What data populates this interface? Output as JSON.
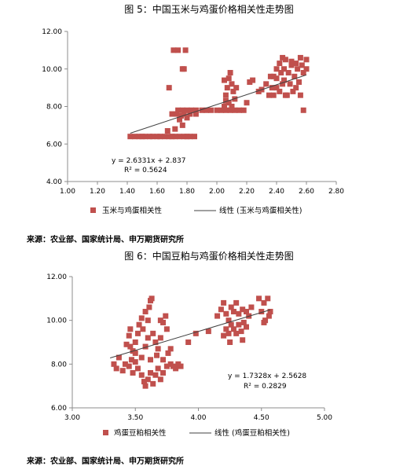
{
  "charts": [
    {
      "fig_title": "图 5：中国玉米与鸡蛋价格相关性走势图",
      "source": "来源：农业部、国家统计局、申万期货研究所",
      "equation": "y = 2.6331x + 2.837",
      "r2": "R² = 0.5624",
      "legend_scatter": "玉米与鸡蛋相关性",
      "legend_trend": "线性 (玉米与鸡蛋相关性)",
      "marker_color": "#c0504d"
    },
    {
      "fig_title": "图 6：中国豆粕与鸡蛋价格相关性走势图",
      "source": "来源：农业部、国家统计局、申万期货研究所",
      "equation": "y = 1.7328x + 2.5628",
      "r2": "R² = 0.2829",
      "legend_scatter": "鸡蛋豆粕相关性",
      "legend_trend": "线性 (鸡蛋豆粕相关性)",
      "marker_color": "#c0504d"
    }
  ],
  "chart_data": [
    {
      "type": "scatter",
      "xlim": [
        1.0,
        2.8
      ],
      "ylim": [
        4.0,
        12.0
      ],
      "xticks": [
        "1.00",
        "1.20",
        "1.40",
        "1.60",
        "1.80",
        "2.00",
        "2.20",
        "2.40",
        "2.60",
        "2.80"
      ],
      "yticks": [
        "4.00",
        "6.00",
        "8.00",
        "10.00",
        "12.00"
      ],
      "grid": false,
      "legend_position": "bottom",
      "series": [
        {
          "points": [
            [
              1.42,
              6.4
            ],
            [
              1.45,
              6.4
            ],
            [
              1.48,
              6.4
            ],
            [
              1.5,
              6.4
            ],
            [
              1.52,
              6.4
            ],
            [
              1.55,
              6.4
            ],
            [
              1.57,
              6.4
            ],
            [
              1.6,
              6.4
            ],
            [
              1.62,
              6.4
            ],
            [
              1.65,
              6.4
            ],
            [
              1.68,
              6.4
            ],
            [
              1.7,
              6.4
            ],
            [
              1.72,
              6.4
            ],
            [
              1.75,
              6.4
            ],
            [
              1.78,
              6.4
            ],
            [
              1.8,
              6.4
            ],
            [
              1.82,
              6.4
            ],
            [
              1.85,
              6.4
            ],
            [
              1.67,
              6.7
            ],
            [
              1.72,
              6.8
            ],
            [
              1.7,
              7.6
            ],
            [
              1.73,
              7.6
            ],
            [
              1.76,
              7.5
            ],
            [
              1.78,
              7.6
            ],
            [
              1.75,
              7.3
            ],
            [
              1.77,
              7.0
            ],
            [
              1.8,
              7.4
            ],
            [
              1.82,
              7.6
            ],
            [
              1.74,
              7.8
            ],
            [
              1.77,
              7.8
            ],
            [
              1.8,
              7.8
            ],
            [
              1.83,
              7.8
            ],
            [
              1.86,
              7.8
            ],
            [
              1.9,
              7.8
            ],
            [
              1.93,
              7.8
            ],
            [
              1.96,
              7.8
            ],
            [
              2.0,
              7.8
            ],
            [
              2.03,
              7.8
            ],
            [
              2.06,
              7.8
            ],
            [
              2.09,
              7.8
            ],
            [
              2.12,
              7.8
            ],
            [
              2.15,
              7.8
            ],
            [
              2.18,
              7.8
            ],
            [
              1.86,
              7.6
            ],
            [
              1.68,
              9.0
            ],
            [
              1.71,
              11.0
            ],
            [
              1.74,
              11.0
            ],
            [
              1.79,
              11.0
            ],
            [
              1.77,
              10.0
            ],
            [
              1.78,
              10.0
            ],
            [
              2.05,
              8.0
            ],
            [
              2.06,
              8.6
            ],
            [
              2.07,
              9.0
            ],
            [
              2.08,
              9.5
            ],
            [
              2.09,
              9.8
            ],
            [
              2.06,
              8.3
            ],
            [
              2.1,
              9.2
            ],
            [
              2.11,
              8.8
            ],
            [
              2.08,
              8.2
            ],
            [
              2.12,
              8.4
            ],
            [
              2.05,
              9.4
            ],
            [
              2.1,
              8.0
            ],
            [
              2.13,
              9.0
            ],
            [
              2.22,
              9.3
            ],
            [
              2.24,
              9.4
            ],
            [
              2.2,
              8.2
            ],
            [
              2.28,
              8.8
            ],
            [
              2.3,
              8.9
            ],
            [
              2.33,
              9.2
            ],
            [
              2.35,
              8.6
            ],
            [
              2.37,
              9.0
            ],
            [
              2.38,
              8.6
            ],
            [
              2.4,
              9.5
            ],
            [
              2.42,
              8.8
            ],
            [
              2.44,
              9.2
            ],
            [
              2.46,
              8.6
            ],
            [
              2.38,
              9.6
            ],
            [
              2.4,
              10.0
            ],
            [
              2.42,
              10.3
            ],
            [
              2.44,
              10.6
            ],
            [
              2.46,
              10.5
            ],
            [
              2.45,
              10.0
            ],
            [
              2.48,
              9.8
            ],
            [
              2.5,
              10.2
            ],
            [
              2.52,
              9.6
            ],
            [
              2.54,
              10.0
            ],
            [
              2.55,
              9.3
            ],
            [
              2.57,
              10.2
            ],
            [
              2.58,
              9.8
            ],
            [
              2.6,
              10.5
            ],
            [
              2.6,
              10.0
            ],
            [
              2.56,
              10.6
            ],
            [
              2.47,
              8.6
            ],
            [
              2.49,
              9.2
            ],
            [
              2.51,
              8.8
            ],
            [
              2.53,
              9.0
            ],
            [
              2.56,
              8.6
            ],
            [
              2.4,
              9.0
            ],
            [
              2.43,
              9.8
            ],
            [
              2.58,
              7.8
            ],
            [
              2.36,
              9.6
            ],
            [
              2.5,
              10.4
            ],
            [
              2.53,
              10.3
            ],
            [
              2.45,
              9.4
            ]
          ]
        }
      ],
      "trendline": {
        "slope": 2.6331,
        "intercept": 2.837,
        "x_range": [
          1.42,
          2.6
        ]
      }
    },
    {
      "type": "scatter",
      "xlim": [
        3.0,
        5.0
      ],
      "ylim": [
        6.0,
        12.0
      ],
      "xticks": [
        "3.00",
        "3.50",
        "4.00",
        "4.50",
        "5.00"
      ],
      "yticks": [
        "6.00",
        "8.00",
        "10.00",
        "12.00"
      ],
      "grid": false,
      "legend_position": "bottom",
      "series": [
        {
          "points": [
            [
              3.33,
              8.0
            ],
            [
              3.35,
              7.8
            ],
            [
              3.37,
              8.3
            ],
            [
              3.4,
              7.7
            ],
            [
              3.42,
              8.0
            ],
            [
              3.45,
              7.9
            ],
            [
              3.47,
              8.2
            ],
            [
              3.48,
              7.6
            ],
            [
              3.5,
              8.1
            ],
            [
              3.52,
              7.8
            ],
            [
              3.55,
              7.5
            ],
            [
              3.57,
              7.2
            ],
            [
              3.58,
              7.0
            ],
            [
              3.6,
              7.3
            ],
            [
              3.62,
              7.6
            ],
            [
              3.64,
              7.1
            ],
            [
              3.66,
              7.5
            ],
            [
              3.68,
              7.8
            ],
            [
              3.7,
              7.3
            ],
            [
              3.72,
              7.6
            ],
            [
              3.75,
              7.9
            ],
            [
              3.78,
              8.0
            ],
            [
              3.82,
              7.8
            ],
            [
              3.86,
              7.9
            ],
            [
              3.43,
              8.9
            ],
            [
              3.45,
              9.3
            ],
            [
              3.46,
              9.6
            ],
            [
              3.48,
              8.6
            ],
            [
              3.5,
              9.0
            ],
            [
              3.52,
              9.4
            ],
            [
              3.53,
              9.8
            ],
            [
              3.55,
              10.1
            ],
            [
              3.56,
              9.6
            ],
            [
              3.58,
              10.4
            ],
            [
              3.6,
              10.0
            ],
            [
              3.61,
              10.6
            ],
            [
              3.62,
              10.9
            ],
            [
              3.63,
              11.0
            ],
            [
              3.6,
              9.2
            ],
            [
              3.58,
              8.8
            ],
            [
              3.64,
              9.4
            ],
            [
              3.66,
              9.0
            ],
            [
              3.68,
              8.7
            ],
            [
              3.7,
              9.2
            ],
            [
              3.72,
              9.9
            ],
            [
              3.74,
              10.2
            ],
            [
              3.7,
              10.0
            ],
            [
              3.75,
              9.6
            ],
            [
              3.67,
              8.4
            ],
            [
              3.62,
              8.2
            ],
            [
              3.55,
              8.3
            ],
            [
              3.5,
              8.5
            ],
            [
              3.46,
              8.8
            ],
            [
              3.72,
              8.2
            ],
            [
              3.76,
              8.5
            ],
            [
              3.78,
              8.7
            ],
            [
              3.8,
              7.9
            ],
            [
              3.84,
              8.0
            ],
            [
              3.92,
              9.0
            ],
            [
              3.98,
              9.4
            ],
            [
              4.08,
              9.5
            ],
            [
              4.15,
              10.2
            ],
            [
              4.18,
              10.5
            ],
            [
              4.2,
              10.8
            ],
            [
              4.22,
              10.3
            ],
            [
              4.24,
              10.0
            ],
            [
              4.26,
              10.6
            ],
            [
              4.28,
              10.4
            ],
            [
              4.3,
              10.8
            ],
            [
              4.32,
              10.3
            ],
            [
              4.35,
              10.5
            ],
            [
              4.38,
              10.4
            ],
            [
              4.4,
              10.2
            ],
            [
              4.42,
              10.6
            ],
            [
              4.2,
              9.3
            ],
            [
              4.22,
              9.6
            ],
            [
              4.24,
              9.4
            ],
            [
              4.26,
              9.8
            ],
            [
              4.28,
              9.6
            ],
            [
              4.3,
              9.4
            ],
            [
              4.32,
              9.8
            ],
            [
              4.34,
              9.5
            ],
            [
              4.36,
              9.9
            ],
            [
              4.38,
              9.7
            ],
            [
              4.25,
              9.0
            ],
            [
              4.35,
              9.1
            ],
            [
              4.48,
              11.0
            ],
            [
              4.52,
              10.8
            ],
            [
              4.55,
              11.0
            ],
            [
              4.5,
              10.4
            ],
            [
              4.53,
              10.0
            ],
            [
              4.56,
              10.2
            ],
            [
              4.52,
              9.9
            ],
            [
              4.57,
              10.4
            ]
          ]
        }
      ],
      "trendline": {
        "slope": 1.7328,
        "intercept": 2.5628,
        "x_range": [
          3.3,
          4.57
        ]
      }
    }
  ]
}
